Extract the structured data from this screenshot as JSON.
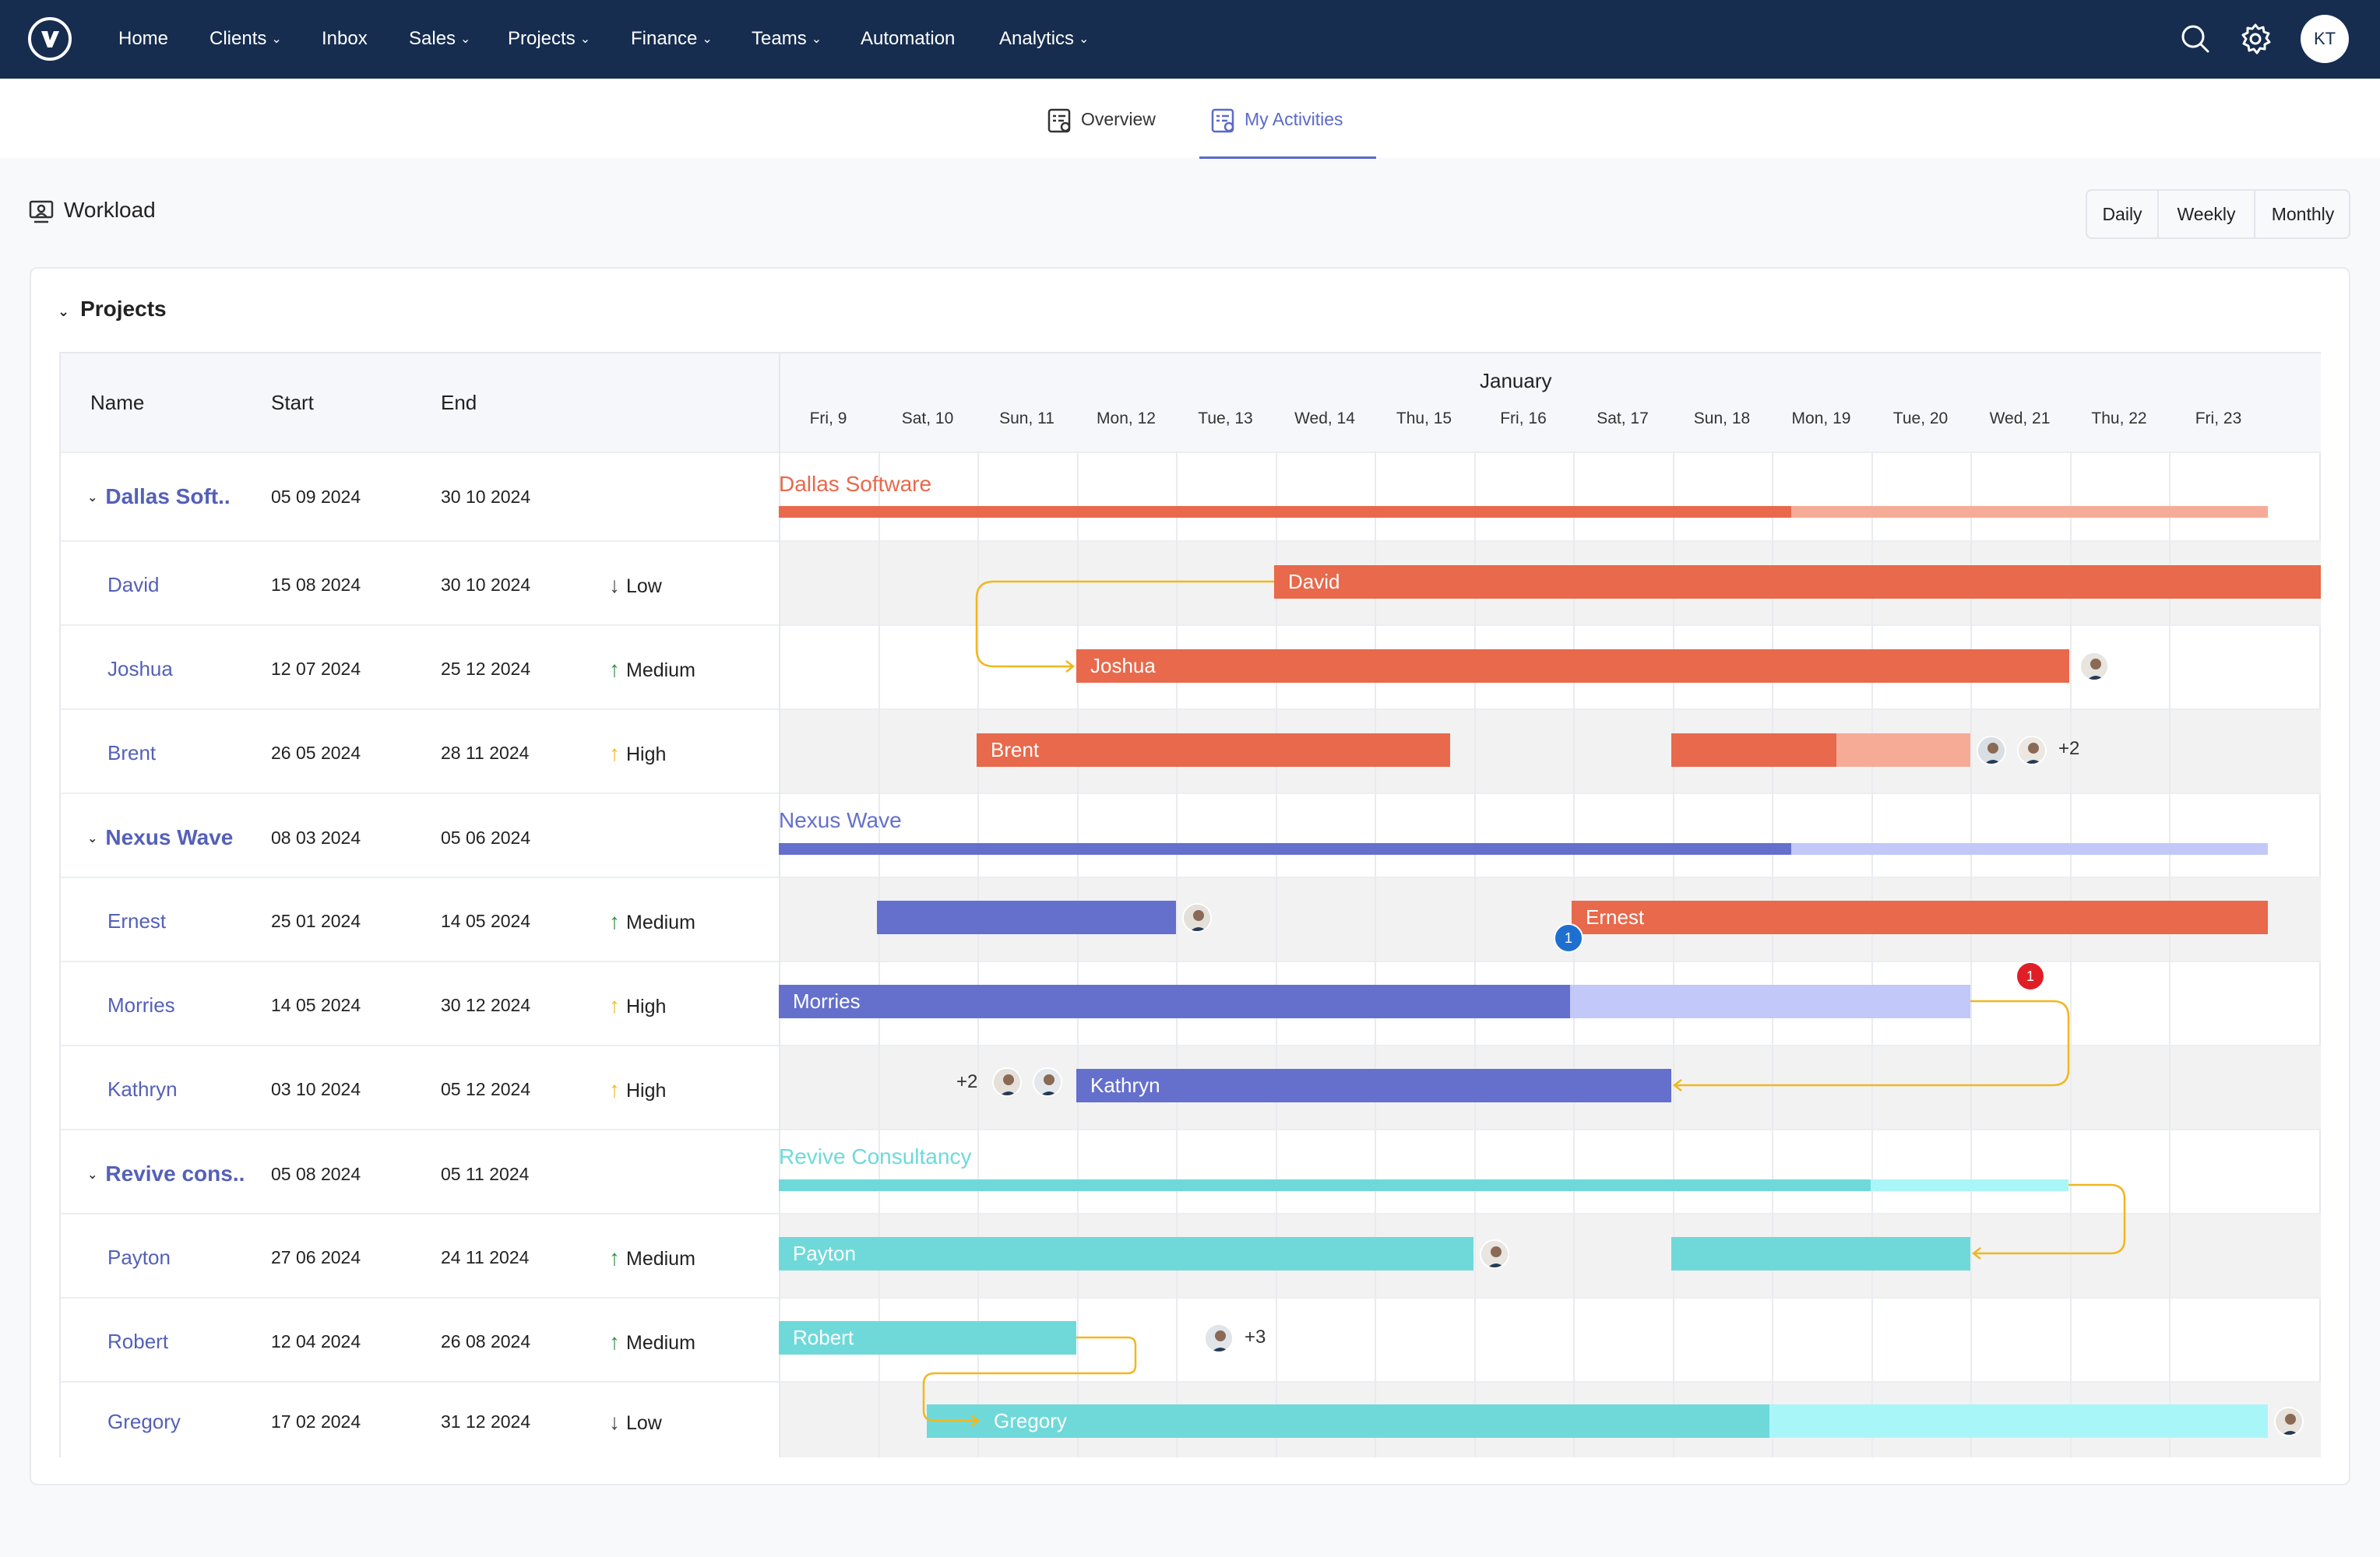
{
  "nav": {
    "items": [
      {
        "label": "Home",
        "has_menu": false
      },
      {
        "label": "Clients",
        "has_menu": true
      },
      {
        "label": "Inbox",
        "has_menu": false
      },
      {
        "label": "Sales",
        "has_menu": true
      },
      {
        "label": "Projects",
        "has_menu": true
      },
      {
        "label": "Finance",
        "has_menu": true
      },
      {
        "label": "Teams",
        "has_menu": true
      },
      {
        "label": "Automation",
        "has_menu": false
      },
      {
        "label": "Analytics",
        "has_menu": true
      }
    ],
    "user_initials": "KT"
  },
  "tabs": [
    {
      "label": "Overview",
      "active": false
    },
    {
      "label": "My Activities",
      "active": true
    }
  ],
  "workload": {
    "title": "Workload",
    "views": [
      "Daily",
      "Weekly",
      "Monthly"
    ]
  },
  "projects_section": {
    "title": "Projects",
    "columns": {
      "name": "Name",
      "start": "Start",
      "end": "End"
    },
    "month": "January",
    "days": [
      "Fri, 9",
      "Sat, 10",
      "Sun, 11",
      "Mon, 12",
      "Tue, 13",
      "Wed, 14",
      "Thu, 15",
      "Fri, 16",
      "Sat, 17",
      "Sun, 18",
      "Mon, 19",
      "Tue, 20",
      "Wed, 21",
      "Thu, 22",
      "Fri, 23"
    ]
  },
  "groups": [
    {
      "name": "Dallas Soft..",
      "timeline_title": "Dallas Software",
      "start": "05 09 2024",
      "end": "30 10 2024",
      "members": [
        {
          "name": "David",
          "start": "15 08 2024",
          "end": "30 10 2024",
          "priority": "Low"
        },
        {
          "name": "Joshua",
          "start": "12 07 2024",
          "end": "25 12 2024",
          "priority": "Medium"
        },
        {
          "name": "Brent",
          "start": "26 05 2024",
          "end": "28 11 2024",
          "priority": "High",
          "extra_assignees": "+2"
        }
      ]
    },
    {
      "name": "Nexus Wave",
      "timeline_title": "Nexus Wave",
      "start": "08 03 2024",
      "end": "05 06 2024",
      "members": [
        {
          "name": "Ernest",
          "start": "25 01 2024",
          "end": "14 05 2024",
          "priority": "Medium",
          "badge": "1"
        },
        {
          "name": "Morries",
          "start": "14 05 2024",
          "end": "30 12 2024",
          "priority": "High",
          "badge": "1"
        },
        {
          "name": "Kathryn",
          "start": "03 10 2024",
          "end": "05 12 2024",
          "priority": "High",
          "extra_assignees": "+2"
        }
      ]
    },
    {
      "name": "Revive cons..",
      "timeline_title": "Revive Consultancy",
      "start": "05 08 2024",
      "end": "05 11 2024",
      "members": [
        {
          "name": "Payton",
          "start": "27 06 2024",
          "end": "24 11 2024",
          "priority": "Medium"
        },
        {
          "name": "Robert",
          "start": "12 04 2024",
          "end": "26 08 2024",
          "priority": "Medium",
          "extra_assignees": "+3"
        },
        {
          "name": "Gregory",
          "start": "17 02 2024",
          "end": "31 12 2024",
          "priority": "Low"
        }
      ]
    }
  ],
  "colors": {
    "nav_bg": "#162d4f",
    "accent": "#5b6ac9",
    "dallas": "#e8694b",
    "dallas_light": "#f6ab97",
    "nexus": "#6470cc",
    "nexus_light": "#c2c8f7",
    "revive": "#6fd9da",
    "revive_light": "#a9f6f9",
    "connector": "#f2b71f",
    "priority_low": "#444444",
    "priority_medium": "#2a8c3c",
    "priority_high": "#f2b71f",
    "badge_blue": "#1f6fd1",
    "badge_red": "#e01e26"
  },
  "icons": [
    "logo-icon",
    "search-icon",
    "gear-icon",
    "overview-icon",
    "activities-icon",
    "workload-icon",
    "chevron-down-icon",
    "arrow-down-icon",
    "arrow-up-icon"
  ]
}
